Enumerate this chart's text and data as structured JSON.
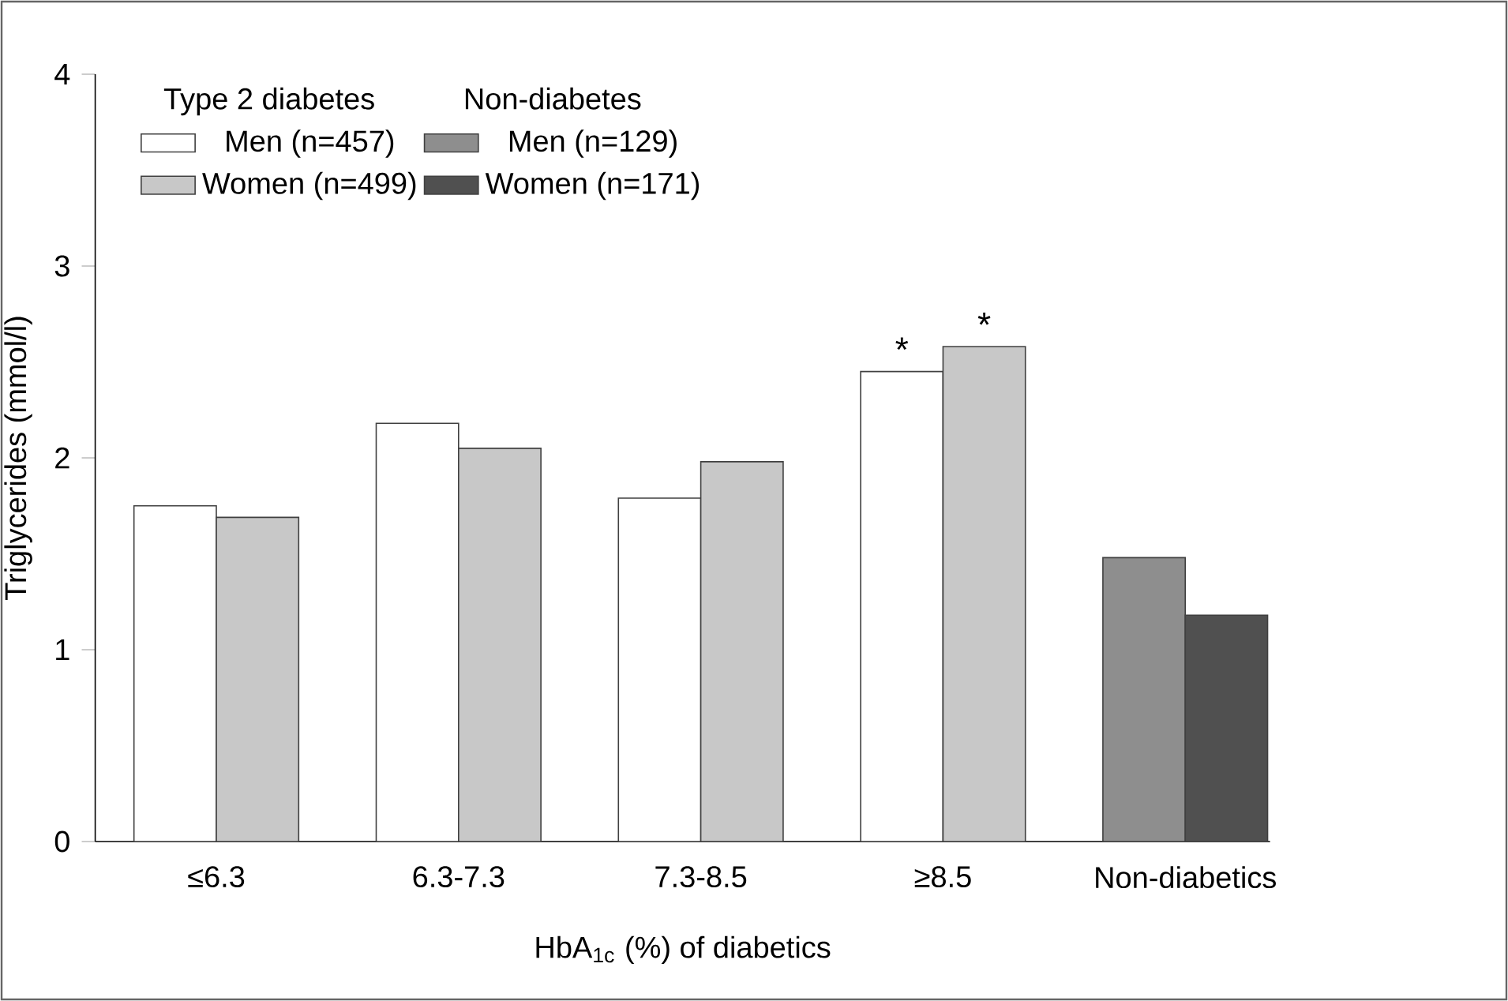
{
  "chart_data": {
    "type": "bar",
    "categories": [
      "≤6.3",
      "6.3-7.3",
      "7.3-8.5",
      "≥8.5",
      "Non-diabetics"
    ],
    "xlabel": "HbA$_{1c}$ (%) of diabetics",
    "ylabel": "Triglycerides (mmol/l)",
    "ylim": [
      0,
      4
    ],
    "yticks": [
      0,
      1,
      2,
      3,
      4
    ],
    "series": [
      {
        "name": "Men (n=457)",
        "color": "#ffffff",
        "values": [
          1.75,
          2.18,
          1.79,
          2.45,
          null
        ]
      },
      {
        "name": "Women (n=499)",
        "color": "#c8c8c8",
        "values": [
          1.69,
          2.05,
          1.98,
          2.58,
          null
        ]
      },
      {
        "name": "Men (n=129)",
        "color": "#8e8e8e",
        "values": [
          null,
          null,
          null,
          null,
          1.48
        ]
      },
      {
        "name": "Women (n=171)",
        "color": "#505050",
        "values": [
          null,
          null,
          null,
          null,
          1.18
        ]
      }
    ],
    "annotations": [
      "Type 2 diabetes",
      "Non-diabetes",
      {
        "text": "*",
        "x": "≥8.5",
        "y": 2.45
      },
      {
        "text": "*",
        "x": "≥8.5",
        "y": 2.58
      }
    ],
    "legend": "top",
    "grid": false
  }
}
